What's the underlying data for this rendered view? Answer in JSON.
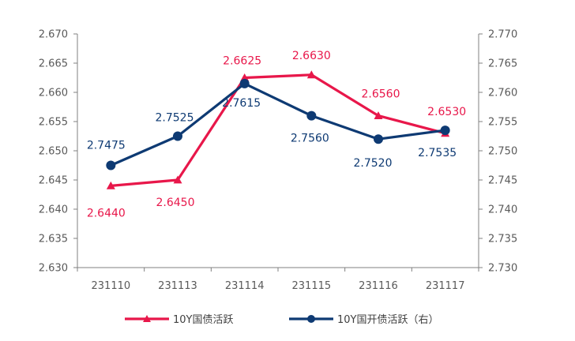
{
  "chart_data": {
    "type": "line",
    "categories": [
      "231110",
      "231113",
      "231114",
      "231115",
      "231116",
      "231117"
    ],
    "series": [
      {
        "name": "10Y国债活跃",
        "axis": "left",
        "marker": "triangle",
        "color": "#E8174A",
        "values": [
          2.644,
          2.645,
          2.6625,
          2.663,
          2.656,
          2.653
        ],
        "labels": [
          "2.6440",
          "2.6450",
          "2.6625",
          "2.6630",
          "2.6560",
          "2.6530"
        ]
      },
      {
        "name": "10Y国开债活跃（右）",
        "axis": "right",
        "marker": "circle",
        "color": "#0E3A73",
        "values": [
          2.7475,
          2.7525,
          2.7615,
          2.756,
          2.752,
          2.7535
        ],
        "labels": [
          "2.7475",
          "2.7525",
          "2.7615",
          "2.7560",
          "2.7520",
          "2.7535"
        ]
      }
    ],
    "y_left": {
      "lim": [
        2.63,
        2.67
      ],
      "ticks": [
        "2.630",
        "2.635",
        "2.640",
        "2.645",
        "2.650",
        "2.655",
        "2.660",
        "2.665",
        "2.670"
      ]
    },
    "y_right": {
      "lim": [
        2.73,
        2.77
      ],
      "ticks": [
        "2.730",
        "2.735",
        "2.740",
        "2.745",
        "2.750",
        "2.755",
        "2.760",
        "2.765",
        "2.770"
      ]
    },
    "grid": false,
    "legend": "bottom"
  }
}
